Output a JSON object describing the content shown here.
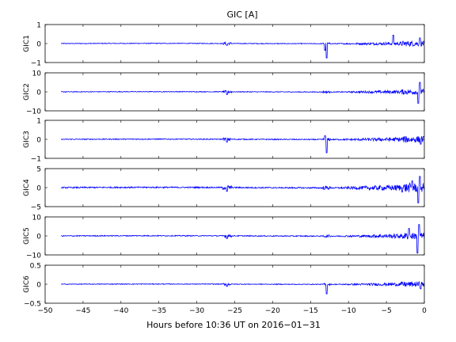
{
  "chart_data": {
    "type": "line",
    "title": "GIC [A]",
    "xlabel": "Hours before  10:36 UT on 2016−01−31",
    "xlim": [
      -50,
      0
    ],
    "x_ticks": [
      -50,
      -45,
      -40,
      -35,
      -30,
      -25,
      -20,
      -15,
      -10,
      -5,
      0
    ],
    "x_tick_labels": [
      "−50",
      "−45",
      "−40",
      "−35",
      "−30",
      "−25",
      "−20",
      "−15",
      "−10",
      "−5",
      "0"
    ],
    "series_color": "#0000ff",
    "panels": [
      {
        "name": "GIC1",
        "ylabel": "GIC1",
        "ylim": [
          -1,
          1
        ],
        "y_ticks": [
          -1,
          0,
          1
        ],
        "y_tick_labels": [
          "−1",
          "0",
          "1"
        ],
        "amplitude": 0.04,
        "features": [
          {
            "x": -12.9,
            "y": -0.75
          },
          {
            "x": -13.1,
            "y": -0.35
          },
          {
            "x": -4.1,
            "y": 0.45
          },
          {
            "x": -0.6,
            "y": 0.3
          },
          {
            "x": -26.0,
            "y": -0.1
          }
        ]
      },
      {
        "name": "GIC2",
        "ylabel": "GIC2",
        "ylim": [
          -10,
          10
        ],
        "y_ticks": [
          -10,
          0,
          10
        ],
        "y_tick_labels": [
          "−10",
          "0",
          "10"
        ],
        "amplitude": 0.4,
        "features": [
          {
            "x": -0.6,
            "y": 5.0
          },
          {
            "x": -0.8,
            "y": -6.0
          },
          {
            "x": -26.0,
            "y": -1.5
          }
        ]
      },
      {
        "name": "GIC3",
        "ylabel": "GIC3",
        "ylim": [
          -1,
          1
        ],
        "y_ticks": [
          -1,
          0,
          1
        ],
        "y_tick_labels": [
          "−1",
          "0",
          "1"
        ],
        "amplitude": 0.05,
        "features": [
          {
            "x": -12.9,
            "y": -0.7
          },
          {
            "x": -13.1,
            "y": 0.2
          },
          {
            "x": -0.5,
            "y": -0.25
          },
          {
            "x": -26.0,
            "y": -0.15
          }
        ]
      },
      {
        "name": "GIC4",
        "ylabel": "GIC4",
        "ylim": [
          -5,
          5
        ],
        "y_ticks": [
          -5,
          0,
          5
        ],
        "y_tick_labels": [
          "−5",
          "0",
          "5"
        ],
        "amplitude": 0.35,
        "features": [
          {
            "x": -0.6,
            "y": 3.0
          },
          {
            "x": -0.8,
            "y": -4.0
          },
          {
            "x": -1.6,
            "y": 1.8
          },
          {
            "x": -26.0,
            "y": -1.0
          }
        ]
      },
      {
        "name": "GIC5",
        "ylabel": "GIC5",
        "ylim": [
          -10,
          10
        ],
        "y_ticks": [
          -10,
          0,
          10
        ],
        "y_tick_labels": [
          "−10",
          "0",
          "10"
        ],
        "amplitude": 0.5,
        "features": [
          {
            "x": -0.7,
            "y": 6.0
          },
          {
            "x": -0.9,
            "y": -9.0
          },
          {
            "x": -2.0,
            "y": 4.0
          },
          {
            "x": -26.0,
            "y": -1.5
          }
        ]
      },
      {
        "name": "GIC6",
        "ylabel": "GIC6",
        "ylim": [
          -0.5,
          0.5
        ],
        "y_ticks": [
          -0.5,
          0,
          0.5
        ],
        "y_tick_labels": [
          "−0.5",
          "0",
          "0.5"
        ],
        "amplitude": 0.02,
        "features": [
          {
            "x": -12.9,
            "y": -0.25
          },
          {
            "x": -0.5,
            "y": -0.12
          },
          {
            "x": -26.0,
            "y": -0.06
          }
        ]
      }
    ]
  }
}
